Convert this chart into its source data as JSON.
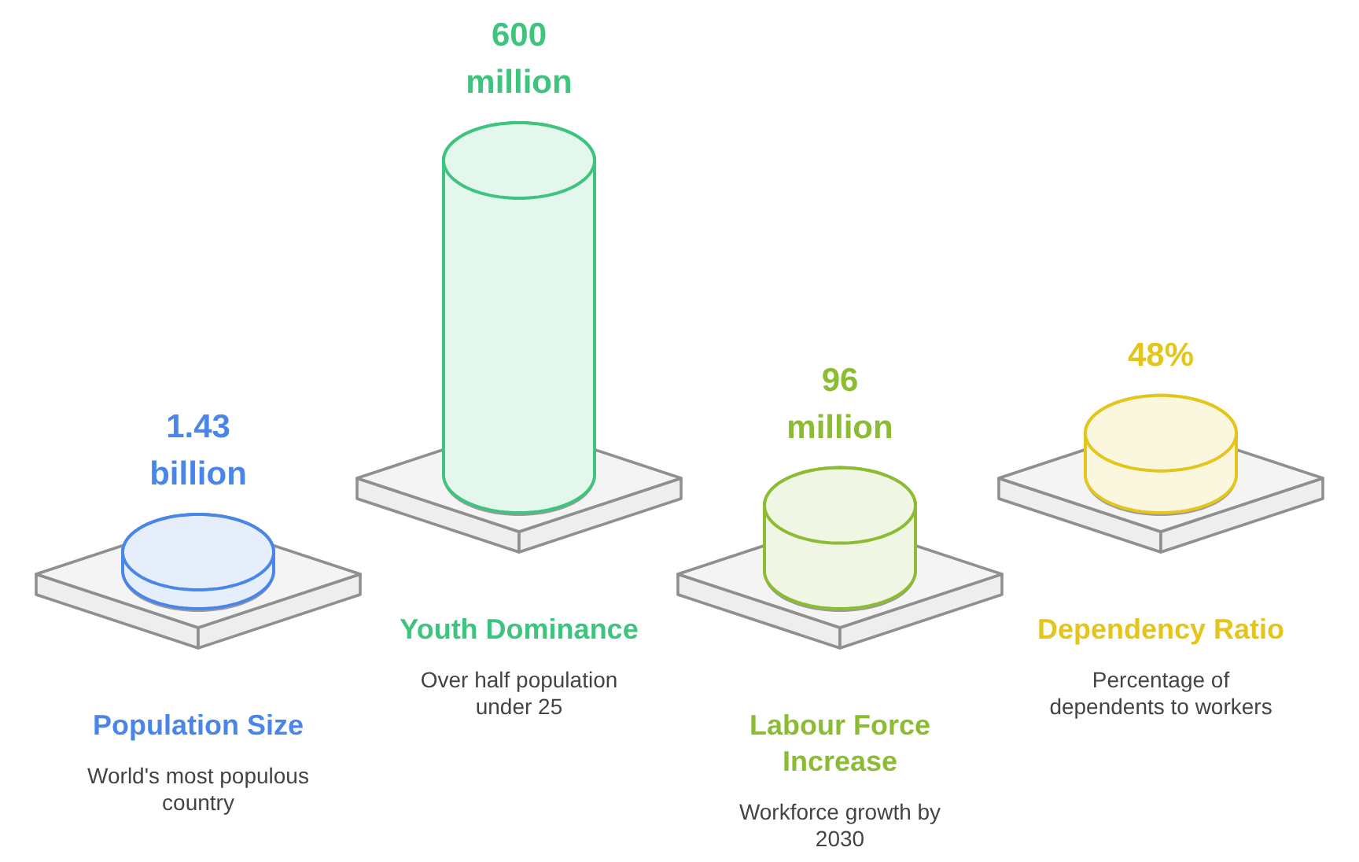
{
  "chart_data": {
    "type": "other",
    "categories": [
      "Population Size",
      "Youth Dominance",
      "Labour Force Increase",
      "Dependency Ratio"
    ],
    "values": [
      1.43,
      600,
      96,
      48
    ],
    "value_labels": [
      "1.43 billion",
      "600 million",
      "96 million",
      "48%"
    ],
    "colors": [
      "#4a86e8",
      "#3ec47e",
      "#8cbc34",
      "#e4c51c"
    ],
    "annotations": [
      {
        "text": "World's most populous country",
        "x": "Population Size"
      },
      {
        "text": "Over half population under 25",
        "x": "Youth Dominance"
      },
      {
        "text": "Workforce growth by 2030",
        "x": "Labour Force Increase"
      },
      {
        "text": "Percentage of dependents to workers",
        "x": "Dependency Ratio"
      }
    ]
  }
}
